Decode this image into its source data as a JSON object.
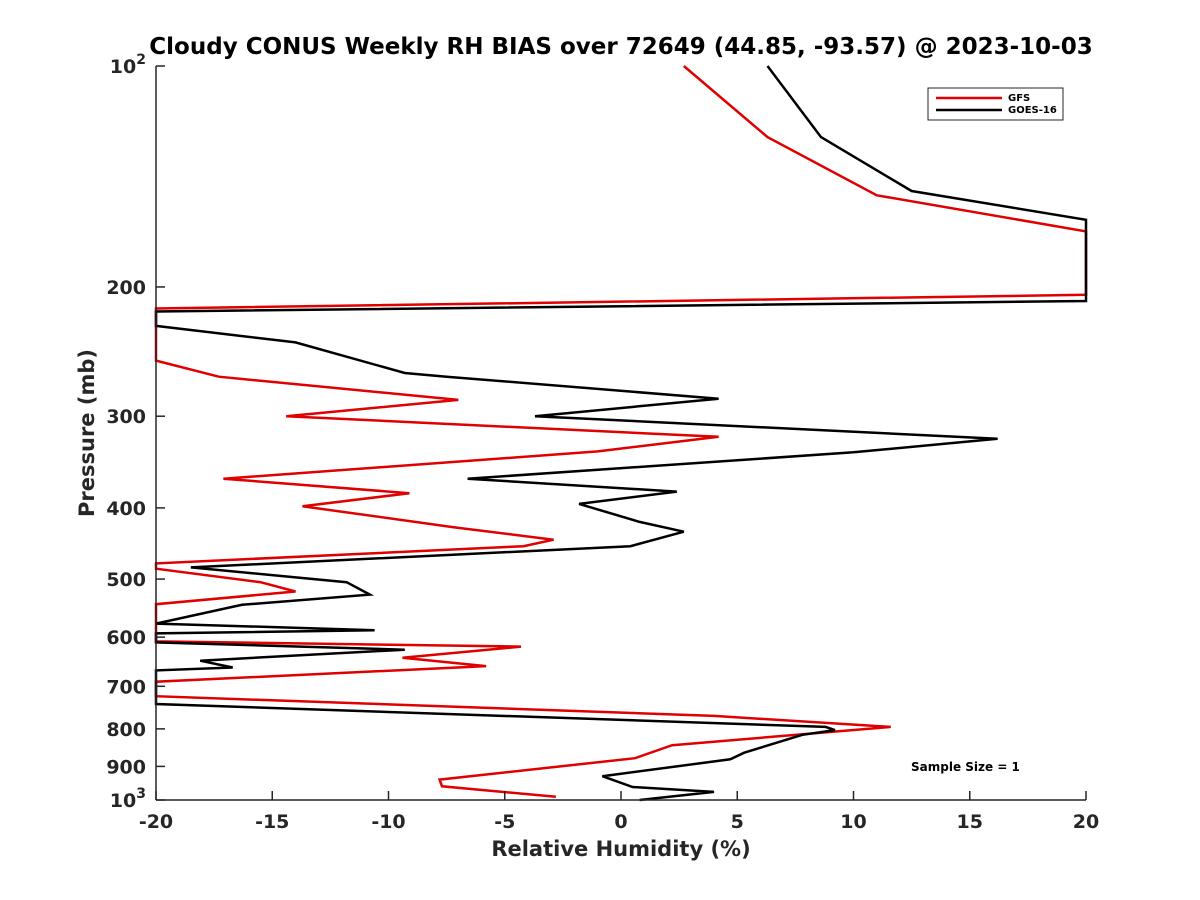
{
  "chart_data": {
    "type": "line",
    "title": "Cloudy CONUS Weekly RH BIAS over 72649 (44.85, -93.57) @ 2023-10-03",
    "xlabel": "Relative Humidity (%)",
    "ylabel": "Pressure (mb)",
    "xlim": [
      -20,
      20
    ],
    "ylim": [
      100,
      1000
    ],
    "y_scale": "log",
    "y_reversed": true,
    "x_ticks": [
      -20,
      -15,
      -10,
      -5,
      0,
      5,
      10,
      15,
      20
    ],
    "x_tick_labels": [
      "-20",
      "-15",
      "-10",
      "-5",
      "0",
      "5",
      "10",
      "15",
      "20"
    ],
    "y_ticks": [
      100,
      200,
      300,
      400,
      500,
      600,
      700,
      800,
      900,
      1000
    ],
    "y_tick_labels": [
      {
        "base": "10",
        "exp": "2"
      },
      {
        "base": "200",
        "exp": ""
      },
      {
        "base": "300",
        "exp": ""
      },
      {
        "base": "400",
        "exp": ""
      },
      {
        "base": "500",
        "exp": ""
      },
      {
        "base": "600",
        "exp": ""
      },
      {
        "base": "700",
        "exp": ""
      },
      {
        "base": "800",
        "exp": ""
      },
      {
        "base": "900",
        "exp": ""
      },
      {
        "base": "10",
        "exp": "3"
      }
    ],
    "grid": false,
    "legend_position": "top-right",
    "annotation": "Sample Size = 1",
    "series": [
      {
        "name": "GFS",
        "color": "#e00000",
        "points": [
          [
            2.7,
            100
          ],
          [
            6.3,
            125
          ],
          [
            11.0,
            150
          ],
          [
            20,
            168
          ],
          [
            20,
            205
          ],
          [
            -20,
            214
          ],
          [
            -20,
            252
          ],
          [
            -17.3,
            265
          ],
          [
            -7.0,
            285
          ],
          [
            -14.4,
            300
          ],
          [
            4.2,
            320
          ],
          [
            -1.0,
            335
          ],
          [
            -17.1,
            365
          ],
          [
            -9.1,
            382
          ],
          [
            -13.7,
            398
          ],
          [
            -7.2,
            425
          ],
          [
            -2.9,
            442
          ],
          [
            -4.2,
            451
          ],
          [
            -20,
            476
          ],
          [
            -20,
            484
          ],
          [
            -15.5,
            505
          ],
          [
            -14.0,
            520
          ],
          [
            -20,
            541
          ],
          [
            -20,
            562
          ],
          [
            -20,
            608
          ],
          [
            -4.3,
            618
          ],
          [
            -9.4,
            640
          ],
          [
            -5.8,
            657
          ],
          [
            -20,
            690
          ],
          [
            -20,
            722
          ],
          [
            4.0,
            768
          ],
          [
            11.6,
            795
          ],
          [
            2.2,
            842
          ],
          [
            0.6,
            877
          ],
          [
            -7.8,
            938
          ],
          [
            -7.7,
            958
          ],
          [
            -2.8,
            990
          ]
        ]
      },
      {
        "name": "GOES-16",
        "color": "#000000",
        "points": [
          [
            6.3,
            100
          ],
          [
            8.6,
            125
          ],
          [
            12.5,
            148
          ],
          [
            20,
            162
          ],
          [
            20,
            209
          ],
          [
            -20,
            216
          ],
          [
            -20,
            226
          ],
          [
            -14.0,
            238
          ],
          [
            -9.3,
            262
          ],
          [
            -7.5,
            265
          ],
          [
            4.2,
            284
          ],
          [
            -3.7,
            300
          ],
          [
            16.2,
            322
          ],
          [
            10.0,
            336
          ],
          [
            -6.6,
            365
          ],
          [
            2.4,
            380
          ],
          [
            -1.8,
            395
          ],
          [
            0.8,
            418
          ],
          [
            2.7,
            431
          ],
          [
            0.4,
            451
          ],
          [
            -18.5,
            482
          ],
          [
            -11.8,
            505
          ],
          [
            -10.8,
            525
          ],
          [
            -16.3,
            542
          ],
          [
            -20,
            575
          ],
          [
            -10.6,
            587
          ],
          [
            -20,
            593
          ],
          [
            -20,
            610
          ],
          [
            -9.3,
            624
          ],
          [
            -18.1,
            646
          ],
          [
            -16.7,
            660
          ],
          [
            -20,
            666
          ],
          [
            -20,
            740
          ],
          [
            8.8,
            795
          ],
          [
            9.2,
            803
          ],
          [
            7.8,
            815
          ],
          [
            5.3,
            862
          ],
          [
            4.7,
            880
          ],
          [
            -0.8,
            928
          ],
          [
            0.5,
            960
          ],
          [
            4.0,
            975
          ],
          [
            0.8,
            1000
          ]
        ]
      }
    ]
  }
}
